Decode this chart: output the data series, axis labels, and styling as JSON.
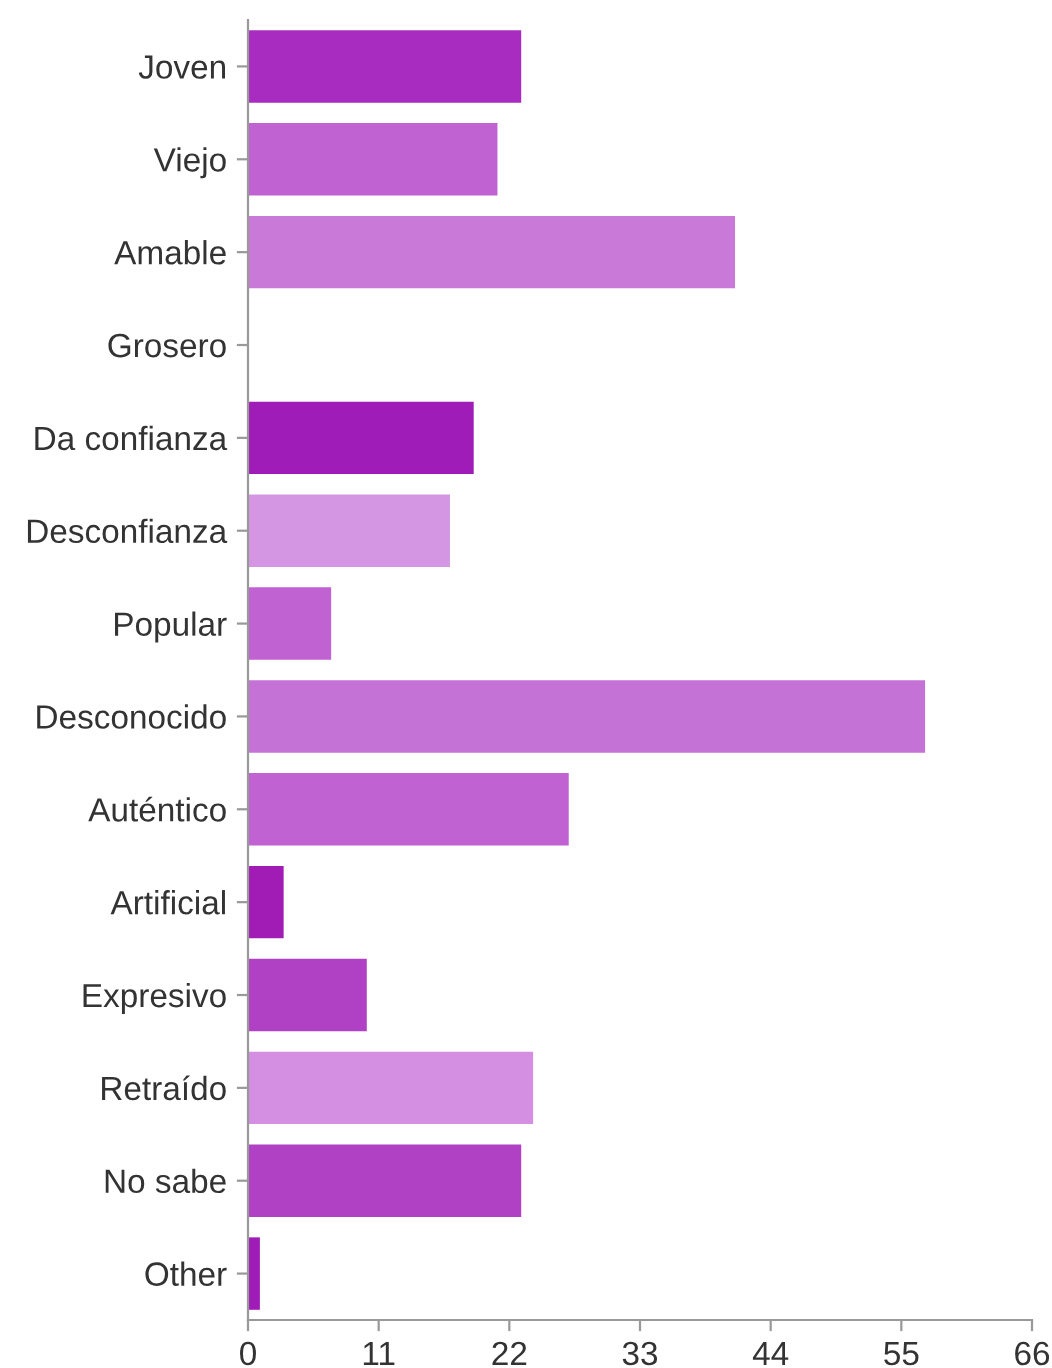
{
  "chart_data": {
    "type": "bar",
    "orientation": "horizontal",
    "categories": [
      "Joven",
      "Viejo",
      "Amable",
      "Grosero",
      "Da confianza",
      "Desconfianza",
      "Popular",
      "Desconocido",
      "Auténtico",
      "Artificial",
      "Expresivo",
      "Retraído",
      "No sabe",
      "Other"
    ],
    "values": [
      23,
      21,
      41,
      0,
      19,
      17,
      7,
      57,
      27,
      3,
      10,
      24,
      23,
      1
    ],
    "colors": [
      "#a82cc0",
      "#c062d2",
      "#c97ad9",
      "#c97ad9",
      "#a01cb8",
      "#d496e2",
      "#c062d2",
      "#c472d6",
      "#c062d2",
      "#a01cb4",
      "#b040c4",
      "#d48ee2",
      "#b040c4",
      "#a01cb8"
    ],
    "xlim": [
      0,
      66
    ],
    "xticks": [
      0,
      11,
      22,
      33,
      44,
      55,
      66
    ],
    "grid": false,
    "legend": false
  }
}
